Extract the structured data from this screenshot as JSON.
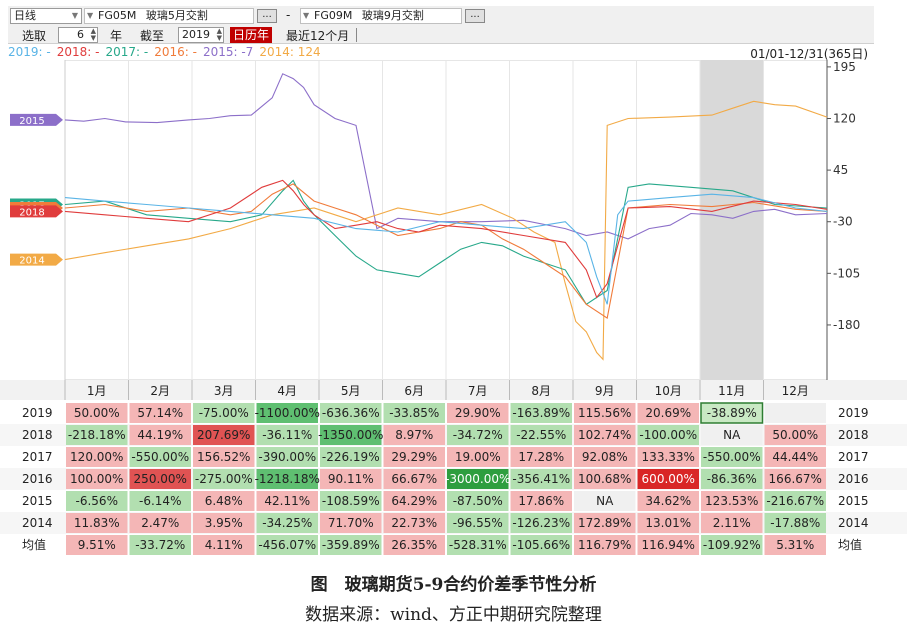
{
  "toolbar": {
    "period": "日线",
    "contract1_code": "FG05M",
    "contract1_name": "玻璃5月交割",
    "separator": "-",
    "contract2_code": "FG09M",
    "contract2_name": "玻璃9月交割",
    "more_button": "...",
    "select_label": "选取",
    "years_value": "6",
    "years_unit": "年",
    "cutoff_label": "截至",
    "cutoff_value": "2019",
    "calendar_year_button": "日历年",
    "last12_button": "最近12个月"
  },
  "legend": [
    {
      "label": "2019: -",
      "color": "#5ab4e6"
    },
    {
      "label": "2018: -",
      "color": "#e03c3c"
    },
    {
      "label": "2017: -",
      "color": "#27a88a"
    },
    {
      "label": "2016: -",
      "color": "#f07b3a"
    },
    {
      "label": "2015: -7",
      "color": "#8c6fc9"
    },
    {
      "label": "2014: 124",
      "color": "#f2aa46"
    }
  ],
  "range_label": "01/01-12/31(365日)",
  "chart_data": {
    "type": "line",
    "ylim": [
      -260,
      205
    ],
    "yticks": [
      195,
      120,
      45,
      -30,
      -105,
      -180
    ],
    "x_unit": "day of year",
    "xlim": [
      1,
      365
    ],
    "months": [
      "1月",
      "2月",
      "3月",
      "4月",
      "5月",
      "6月",
      "7月",
      "8月",
      "9月",
      "10月",
      "11月",
      "12月"
    ],
    "highlight_month": "11月",
    "series": [
      {
        "name": "2015",
        "color": "#8c6fc9",
        "tag_color": "#8c6fc9",
        "x": [
          1,
          10,
          20,
          30,
          45,
          60,
          70,
          80,
          90,
          100,
          105,
          110,
          115,
          120,
          130,
          140,
          150,
          160,
          180,
          200,
          220,
          240,
          250,
          260,
          270,
          280,
          290,
          300,
          310,
          320,
          330,
          340,
          350,
          365
        ],
        "y": [
          118,
          116,
          120,
          115,
          114,
          118,
          120,
          124,
          125,
          150,
          185,
          178,
          165,
          140,
          120,
          110,
          -40,
          -25,
          -30,
          -30,
          -28,
          -40,
          -50,
          -45,
          -55,
          -40,
          -35,
          -18,
          -20,
          -25,
          -15,
          -12,
          -20,
          -18
        ]
      },
      {
        "name": "2014",
        "color": "#f2aa46",
        "tag_color": "#f2aa46",
        "x": [
          1,
          20,
          40,
          60,
          80,
          90,
          100,
          110,
          120,
          130,
          140,
          160,
          180,
          200,
          215,
          225,
          235,
          240,
          245,
          250,
          255,
          258,
          260,
          270,
          290,
          310,
          320,
          330,
          340,
          350,
          365
        ],
        "y": [
          -85,
          -75,
          -65,
          -55,
          -40,
          -30,
          -20,
          -15,
          -10,
          -20,
          -30,
          -10,
          -20,
          -5,
          -25,
          -45,
          -60,
          -120,
          -175,
          -190,
          -220,
          -230,
          110,
          120,
          122,
          125,
          135,
          145,
          140,
          138,
          122
        ]
      },
      {
        "name": "2017",
        "color": "#27a88a",
        "tag_color": "#27a88a",
        "x": [
          1,
          20,
          40,
          60,
          80,
          95,
          105,
          110,
          115,
          120,
          130,
          140,
          150,
          160,
          170,
          180,
          190,
          200,
          210,
          220,
          230,
          240,
          250,
          260,
          270,
          280,
          300,
          320,
          340,
          365
        ],
        "y": [
          -5,
          0,
          -20,
          -25,
          -30,
          -20,
          15,
          30,
          0,
          -20,
          -50,
          -80,
          -100,
          -105,
          -110,
          -90,
          -70,
          -60,
          -65,
          -80,
          -90,
          -100,
          -150,
          -130,
          20,
          25,
          20,
          15,
          -5,
          -10
        ]
      },
      {
        "name": "2016",
        "color": "#f07b3a",
        "tag_color": "#f07b3a",
        "x": [
          1,
          20,
          40,
          60,
          80,
          90,
          100,
          110,
          120,
          130,
          140,
          150,
          160,
          170,
          180,
          190,
          200,
          210,
          220,
          230,
          240,
          250,
          260,
          270,
          290,
          310,
          330,
          350,
          365
        ],
        "y": [
          -10,
          -5,
          -15,
          -10,
          -20,
          -15,
          10,
          25,
          0,
          -10,
          -20,
          -35,
          -50,
          -45,
          -40,
          -30,
          -35,
          -55,
          -70,
          -90,
          -110,
          -150,
          -170,
          -10,
          -5,
          -8,
          -2,
          -12,
          -15
        ]
      },
      {
        "name": "2018",
        "color": "#e03c3c",
        "tag_color": "#e03c3c",
        "x": [
          1,
          20,
          40,
          60,
          80,
          95,
          105,
          110,
          115,
          120,
          130,
          140,
          150,
          160,
          170,
          180,
          200,
          220,
          240,
          250,
          255,
          260,
          270,
          290,
          310,
          330,
          350,
          365
        ],
        "y": [
          -15,
          -20,
          -25,
          -30,
          -10,
          20,
          30,
          15,
          -5,
          -20,
          -40,
          -35,
          -30,
          -40,
          -45,
          -35,
          -40,
          -50,
          -60,
          -100,
          -140,
          -120,
          -10,
          -8,
          -15,
          0,
          -5,
          -12
        ]
      },
      {
        "name": "2019",
        "color": "#5ab4e6",
        "tag_color": "#5ab4e6",
        "x": [
          1,
          20,
          40,
          60,
          80,
          100,
          120,
          140,
          160,
          180,
          200,
          220,
          240,
          250,
          255,
          260,
          265,
          270,
          290,
          310,
          330,
          350,
          365
        ],
        "y": [
          5,
          0,
          -5,
          -10,
          -15,
          -20,
          -25,
          -40,
          -45,
          -30,
          -35,
          -40,
          -30,
          -60,
          -110,
          -150,
          -20,
          0,
          5,
          10,
          5,
          -10,
          -15
        ]
      }
    ]
  },
  "table": {
    "months": [
      "1月",
      "2月",
      "3月",
      "4月",
      "5月",
      "6月",
      "7月",
      "8月",
      "9月",
      "10月",
      "11月",
      "12月"
    ],
    "rows": [
      {
        "label": "2019",
        "cells": [
          "50.00%",
          "57.14%",
          "-75.00%",
          "-1100.00%",
          "-636.36%",
          "-33.85%",
          "29.90%",
          "-163.89%",
          "115.56%",
          "20.69%",
          "-38.89%",
          ""
        ],
        "tones": [
          "r",
          "r",
          "g",
          "G",
          "g",
          "g",
          "r",
          "g",
          "r",
          "r",
          "sel",
          "e"
        ]
      },
      {
        "label": "2018",
        "cells": [
          "-218.18%",
          "44.19%",
          "207.69%",
          "-36.11%",
          "-1350.00%",
          "8.97%",
          "-34.72%",
          "-22.55%",
          "102.74%",
          "-100.00%",
          "NA",
          "50.00%"
        ],
        "tones": [
          "g",
          "r",
          "R",
          "g",
          "G",
          "r",
          "g",
          "g",
          "r",
          "g",
          "n",
          "r"
        ]
      },
      {
        "label": "2017",
        "cells": [
          "120.00%",
          "-550.00%",
          "156.52%",
          "-390.00%",
          "-226.19%",
          "29.29%",
          "19.00%",
          "17.28%",
          "92.08%",
          "133.33%",
          "-550.00%",
          "44.44%"
        ],
        "tones": [
          "r",
          "g",
          "r",
          "g",
          "g",
          "r",
          "r",
          "r",
          "r",
          "r",
          "g",
          "r"
        ]
      },
      {
        "label": "2016",
        "cells": [
          "100.00%",
          "250.00%",
          "-275.00%",
          "-1218.18%",
          "90.11%",
          "66.67%",
          "-3000.00%",
          "-356.41%",
          "100.68%",
          "600.00%",
          "-86.36%",
          "166.67%"
        ],
        "tones": [
          "r",
          "R",
          "g",
          "G",
          "r",
          "r",
          "D",
          "g",
          "r",
          "X",
          "g",
          "r"
        ]
      },
      {
        "label": "2015",
        "cells": [
          "-6.56%",
          "-6.14%",
          "6.48%",
          "42.11%",
          "-108.59%",
          "64.29%",
          "-87.50%",
          "17.86%",
          "NA",
          "34.62%",
          "123.53%",
          "-216.67%"
        ],
        "tones": [
          "g",
          "g",
          "r",
          "r",
          "g",
          "r",
          "g",
          "r",
          "n",
          "r",
          "r",
          "g"
        ]
      },
      {
        "label": "2014",
        "cells": [
          "11.83%",
          "2.47%",
          "3.95%",
          "-34.25%",
          "71.70%",
          "22.73%",
          "-96.55%",
          "-126.23%",
          "172.89%",
          "13.01%",
          "2.11%",
          "-17.88%"
        ],
        "tones": [
          "r",
          "r",
          "r",
          "g",
          "r",
          "r",
          "g",
          "g",
          "r",
          "r",
          "r",
          "g"
        ]
      },
      {
        "label": "均值",
        "cells": [
          "9.51%",
          "-33.72%",
          "4.11%",
          "-456.07%",
          "-359.89%",
          "26.35%",
          "-528.31%",
          "-105.66%",
          "116.79%",
          "116.94%",
          "-109.92%",
          "5.31%"
        ],
        "tones": [
          "r",
          "g",
          "r",
          "g",
          "g",
          "r",
          "g",
          "g",
          "r",
          "r",
          "g",
          "r"
        ]
      }
    ]
  },
  "caption": {
    "title": "图　玻璃期货5-9合约价差季节性分析",
    "source": "数据来源：wind、方正中期研究院整理"
  }
}
